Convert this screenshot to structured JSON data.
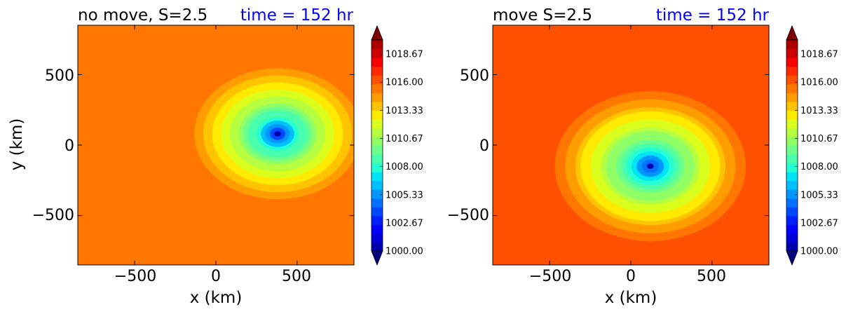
{
  "chart_data": [
    {
      "type": "heatmap",
      "title": "no move, S=2.5",
      "time_label": "time = 152 hr",
      "xlabel": "x (km)",
      "ylabel": "y (km)",
      "xlim": [
        -850,
        850
      ],
      "ylim": [
        -850,
        850
      ],
      "xticks": [
        -500,
        0,
        500
      ],
      "yticks": [
        500,
        0,
        -500
      ],
      "xtick_labels": [
        "−500",
        "0",
        "500"
      ],
      "ytick_labels": [
        "500",
        "0",
        "−500"
      ],
      "vortex_center_km": [
        380,
        80
      ],
      "min_pressure": 1000.0,
      "background_pressure": 1015.5,
      "colorbar": {
        "min": 1000.0,
        "max": 1020.0,
        "tick_values": [
          1000.0,
          1002.67,
          1005.33,
          1008.0,
          1010.67,
          1013.33,
          1016.0,
          1018.67
        ],
        "tick_labels": [
          "1000.00",
          "1002.67",
          "1005.33",
          "1008.00",
          "1010.67",
          "1013.33",
          "1016.00",
          "1018.67"
        ],
        "extend": "both"
      }
    },
    {
      "type": "heatmap",
      "title": "move S=2.5",
      "time_label": "time = 152 hr",
      "xlabel": "x (km)",
      "ylabel": "",
      "xlim": [
        -850,
        850
      ],
      "ylim": [
        -850,
        850
      ],
      "xticks": [
        -500,
        0,
        500
      ],
      "yticks": [
        500,
        0,
        -500
      ],
      "xtick_labels": [
        "−500",
        "0",
        "500"
      ],
      "ytick_labels": [
        "500",
        "0",
        "−500"
      ],
      "vortex_center_km": [
        120,
        -150
      ],
      "min_pressure": 1000.0,
      "background_pressure": 1016.0,
      "colorbar": {
        "min": 1000.0,
        "max": 1020.0,
        "tick_values": [
          1000.0,
          1002.67,
          1005.33,
          1008.0,
          1010.67,
          1013.33,
          1016.0,
          1018.67
        ],
        "tick_labels": [
          "1000.00",
          "1002.67",
          "1005.33",
          "1008.00",
          "1010.67",
          "1013.33",
          "1016.00",
          "1018.67"
        ],
        "extend": "both"
      }
    }
  ],
  "colormap": [
    "#000080",
    "#0000ad",
    "#0000da",
    "#0000ff",
    "#0020ff",
    "#0048ff",
    "#0070ff",
    "#0098ff",
    "#00c0ff",
    "#00e4f8",
    "#22ffd4",
    "#48ffae",
    "#6cff8a",
    "#90ff66",
    "#b6ff40",
    "#daff1c",
    "#ffea00",
    "#ffc400",
    "#ff9c00",
    "#ff7600",
    "#ff5000",
    "#ff2800",
    "#f60000",
    "#d10000",
    "#ad0000",
    "#800000"
  ]
}
